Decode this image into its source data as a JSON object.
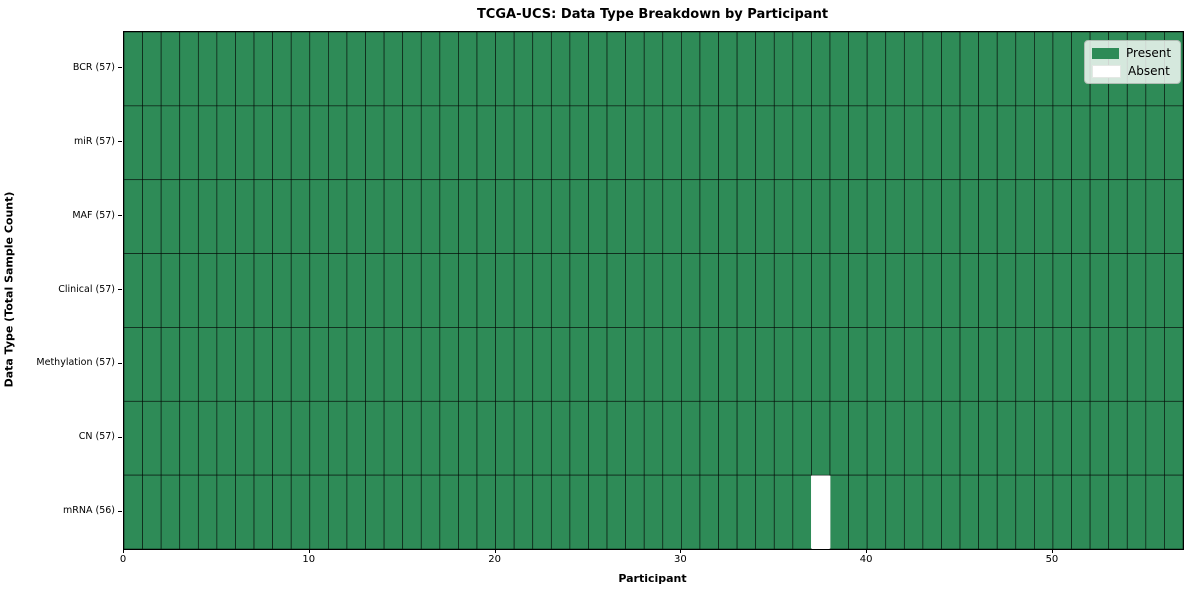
{
  "figure": {
    "title": "TCGA-UCS: Data Type Breakdown by Participant",
    "xlabel": "Participant",
    "ylabel": "Data Type (Total Sample Count)"
  },
  "legend": {
    "items": [
      {
        "label": "Present",
        "color": "#2e8b57"
      },
      {
        "label": "Absent",
        "color": "#ffffff"
      }
    ]
  },
  "chart_data": {
    "type": "heatmap",
    "title": "TCGA-UCS: Data Type Breakdown by Participant",
    "xlabel": "Participant",
    "ylabel": "Data Type (Total Sample Count)",
    "n_participants": 57,
    "x_ticks": [
      0,
      10,
      20,
      30,
      40,
      50
    ],
    "rows": [
      {
        "label": "BCR (57)",
        "present_count": 57,
        "absent_participants": []
      },
      {
        "label": "miR (57)",
        "present_count": 57,
        "absent_participants": []
      },
      {
        "label": "MAF (57)",
        "present_count": 57,
        "absent_participants": []
      },
      {
        "label": "Clinical (57)",
        "present_count": 57,
        "absent_participants": []
      },
      {
        "label": "Methylation (57)",
        "present_count": 57,
        "absent_participants": []
      },
      {
        "label": "CN (57)",
        "present_count": 57,
        "absent_participants": []
      },
      {
        "label": "mRNA (56)",
        "present_count": 56,
        "absent_participants": [
          37
        ]
      }
    ],
    "colors": {
      "present": "#2e8b57",
      "absent": "#ffffff",
      "cell_edge": "rgba(0,0,0,0.75)",
      "axis": "#000000"
    },
    "legend_entries": [
      "Present",
      "Absent"
    ],
    "legend_position": "upper right",
    "grid": false
  }
}
